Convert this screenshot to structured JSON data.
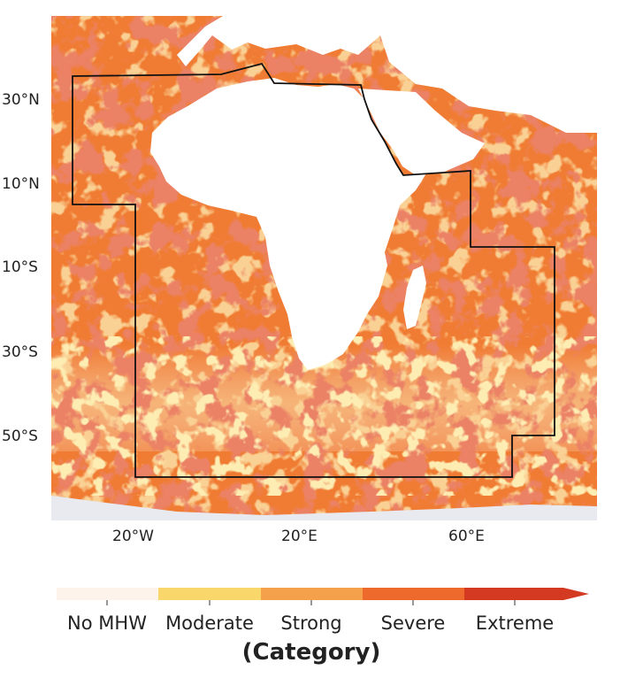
{
  "map": {
    "lat_labels": [
      "30°N",
      "10°N",
      "10°S",
      "30°S",
      "50°S"
    ],
    "lon_labels": [
      "20°W",
      "20°E",
      "60°E"
    ]
  },
  "legend": {
    "title": "(Category)",
    "categories": [
      {
        "label": "No MHW",
        "color": "#fdf3ea"
      },
      {
        "label": "Moderate",
        "color": "#f9d76b"
      },
      {
        "label": "Strong",
        "color": "#f5a04a"
      },
      {
        "label": "Severe",
        "color": "#ee6a2c"
      },
      {
        "label": "Extreme",
        "color": "#d43a22"
      }
    ]
  },
  "colors": {
    "ocean_base": "#f07c33",
    "land": "#ffffff",
    "boundary": "#111111",
    "antarctic_ice": "#e9e9f0"
  }
}
